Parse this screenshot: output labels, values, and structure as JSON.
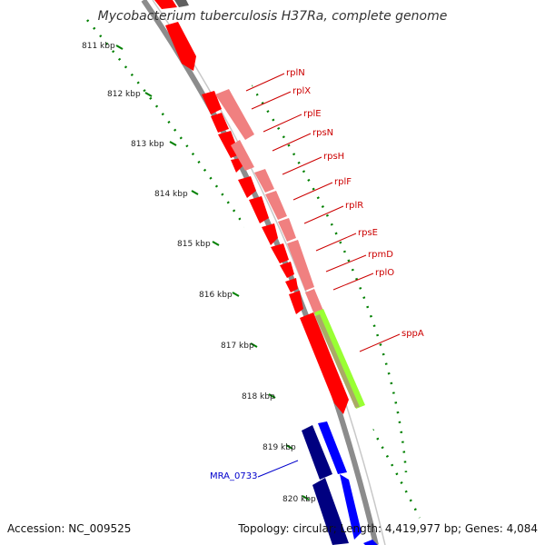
{
  "title": "Mycobacterium tuberculosis H37Ra, complete genome",
  "footer": {
    "accession": "Accession: NC_009525",
    "summary": "Topology: circular; Length: 4,419,977 bp; Genes: 4,084"
  },
  "ticks": [
    {
      "label": "811 kbp"
    },
    {
      "label": "812 kbp"
    },
    {
      "label": "813 kbp"
    },
    {
      "label": "814 kbp"
    },
    {
      "label": "815 kbp"
    },
    {
      "label": "816 kbp"
    },
    {
      "label": "817 kbp"
    },
    {
      "label": "818 kbp"
    },
    {
      "label": "819 kbp"
    },
    {
      "label": "820 kbp"
    }
  ],
  "gene_labels": [
    {
      "text": "rplN",
      "color": "#cc0000"
    },
    {
      "text": "rplX",
      "color": "#cc0000"
    },
    {
      "text": "rplE",
      "color": "#cc0000"
    },
    {
      "text": "rpsN",
      "color": "#cc0000"
    },
    {
      "text": "rpsH",
      "color": "#cc0000"
    },
    {
      "text": "rplF",
      "color": "#cc0000"
    },
    {
      "text": "rplR",
      "color": "#cc0000"
    },
    {
      "text": "rpsE",
      "color": "#cc0000"
    },
    {
      "text": "rpmD",
      "color": "#cc0000"
    },
    {
      "text": "rplO",
      "color": "#cc0000"
    },
    {
      "text": "sppA",
      "color": "#cc0000"
    },
    {
      "text": "MRA_0733",
      "color": "#0000cc"
    }
  ],
  "colors": {
    "backbone": "#8c8c8c",
    "forward_gene": "#ff0000",
    "forward_gene_light": "#f08080",
    "feature_green": "#99ff33",
    "reverse_gene_dark": "#000080",
    "reverse_gene": "#0000ff",
    "tick_dots": "#008000"
  }
}
